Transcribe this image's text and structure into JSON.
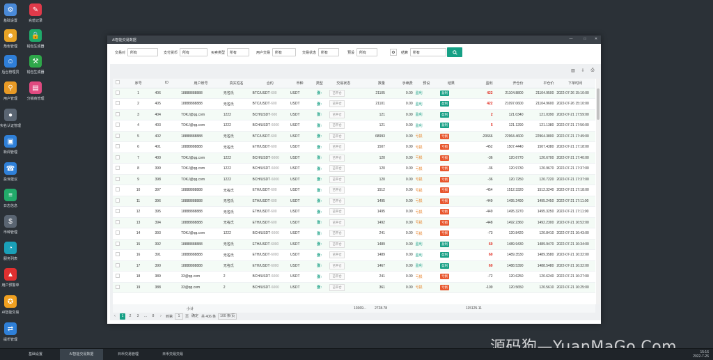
{
  "desktop_icons": [
    {
      "label": "基础设置",
      "icon": "gear-icon",
      "color": "#4a8ad8"
    },
    {
      "label": "充值记录",
      "icon": "chart-icon",
      "color": "#e03a4a"
    },
    {
      "label": "角色管理",
      "icon": "user-badge-icon",
      "color": "#e8a325"
    },
    {
      "label": "钱包生成器",
      "icon": "lock-icon",
      "color": "#1faa6a"
    },
    {
      "label": "后台管理员",
      "icon": "admin-icon",
      "color": "#2f7fd8"
    },
    {
      "label": "钱包生成器",
      "icon": "pickaxe-icon",
      "color": "#2ea84a"
    },
    {
      "label": "用户管理",
      "icon": "user-search-icon",
      "color": "#e89a25"
    },
    {
      "label": "分销商管理",
      "icon": "shop-icon",
      "color": "#e04a80"
    },
    {
      "label": "实名认证管理",
      "icon": "person-icon",
      "color": "#5a6572"
    },
    {
      "label": "新闻管理",
      "icon": "news-icon",
      "color": "#2f80d8"
    },
    {
      "label": "投诉建议",
      "icon": "headset-icon",
      "color": "#2f80d8"
    },
    {
      "label": "日志信息",
      "icon": "document-icon",
      "color": "#22aa6a"
    },
    {
      "label": "币种管理",
      "icon": "dollar-icon",
      "color": "#5a6572"
    },
    {
      "label": "服务列表",
      "icon": "pie-icon",
      "color": "#1aa0b8"
    },
    {
      "label": "用户预警单",
      "icon": "alarm-icon",
      "color": "#e03030"
    },
    {
      "label": "AI智能交易",
      "icon": "medal-icon",
      "color": "#f0a020"
    },
    {
      "label": "提币管理",
      "icon": "withdraw-icon",
      "color": "#2f80d8"
    }
  ],
  "taskbar": {
    "items": [
      "基础设置",
      "AI智能交易数据",
      "日币交易管理",
      "日币交易交易"
    ],
    "time": "15:16",
    "date": "2022-7-26"
  },
  "watermark": "源码狗—YuanMaGo.Com",
  "window": {
    "title": "AI智能交易数据",
    "ctl_min": "—",
    "ctl_max": "□",
    "ctl_close": "✕"
  },
  "filters": [
    {
      "label": "交易对",
      "value": "所有"
    },
    {
      "label": "支付货币",
      "value": "所有"
    },
    {
      "label": "买卖类型",
      "value": "所有"
    },
    {
      "label": "用户交易",
      "value": "所有"
    },
    {
      "label": "交易状态",
      "value": "所有"
    },
    {
      "label": "预设",
      "value": "所有"
    },
    {
      "label": "结算",
      "value": "所有"
    }
  ],
  "columns": [
    "",
    "序号",
    "ID",
    "用户账号",
    "真实姓名",
    "合约",
    "币种",
    "类型",
    "交易状态",
    "数量",
    "手续费",
    "预设",
    "结果",
    "盈利",
    "开仓价",
    "平仓价",
    "下单时间"
  ],
  "rows": [
    {
      "no": "1",
      "id": "406",
      "account": "18888888888",
      "name": "无名氏",
      "pair": "BTC/USDT",
      "pair_sub": "·600",
      "coin": "USDT",
      "type": "涨↑",
      "status": "已平仓",
      "qty": "21105",
      "fee": "0.00",
      "preset": "盈利",
      "result": "盈利",
      "profit": "422",
      "open": "21104.8800",
      "close": "21104.9500",
      "time": "2022-07-26 15:10:00"
    },
    {
      "no": "2",
      "id": "405",
      "account": "18888888888",
      "name": "无名氏",
      "pair": "BTC/USDT",
      "pair_sub": "·600",
      "coin": "USDT",
      "type": "涨↑",
      "status": "已平仓",
      "qty": "21101",
      "fee": "0.00",
      "preset": "盈利",
      "result": "盈利",
      "profit": "422",
      "open": "21097.0600",
      "close": "21104.9600",
      "time": "2022-07-26 15:10:00"
    },
    {
      "no": "3",
      "id": "404",
      "account": "TDKJ@qq.com",
      "name": "1222",
      "pair": "BCH/USDT",
      "pair_sub": "·600",
      "coin": "USDT",
      "type": "涨↑",
      "status": "已平仓",
      "qty": "121",
      "fee": "0.00",
      "preset": "盈利",
      "result": "盈利",
      "profit": "2",
      "open": "121.0340",
      "close": "121.0390",
      "time": "2022-07-21 17:59:00"
    },
    {
      "no": "4",
      "id": "403",
      "account": "TDKJ@qq.com",
      "name": "1222",
      "pair": "BCH/USDT",
      "pair_sub": "·6000",
      "coin": "USDT",
      "type": "涨↑",
      "status": "已平仓",
      "qty": "121",
      "fee": "0.00",
      "preset": "盈利",
      "result": "盈利",
      "profit": "5",
      "open": "121.1290",
      "close": "121.1380",
      "time": "2022-07-21 17:56:00"
    },
    {
      "no": "5",
      "id": "402",
      "account": "18888888888",
      "name": "无名氏",
      "pair": "BTC/USDT",
      "pair_sub": "·600",
      "coin": "USDT",
      "type": "涨↑",
      "status": "已平仓",
      "qty": "68993",
      "fee": "0.00",
      "preset": "亏损",
      "result": "亏损",
      "profit": "-20666",
      "open": "22964.4600",
      "close": "22964.3800",
      "time": "2022-07-21 17:49:00"
    },
    {
      "no": "6",
      "id": "401",
      "account": "18888888888",
      "name": "无名氏",
      "pair": "ETH/USDT",
      "pair_sub": "·600",
      "coin": "USDT",
      "type": "涨↑",
      "status": "已平仓",
      "qty": "1507",
      "fee": "0.00",
      "preset": "亏损",
      "result": "亏损",
      "profit": "-452",
      "open": "1507.4440",
      "close": "1507.4380",
      "time": "2022-07-21 17:18:00"
    },
    {
      "no": "7",
      "id": "400",
      "account": "TDKJ@qq.com",
      "name": "1222",
      "pair": "BCH/USDT",
      "pair_sub": "·6000",
      "coin": "USDT",
      "type": "涨↑",
      "status": "已平仓",
      "qty": "120",
      "fee": "0.00",
      "preset": "亏损",
      "result": "亏损",
      "profit": "-36",
      "open": "120.6770",
      "close": "120.6700",
      "time": "2022-07-21 17:40:00"
    },
    {
      "no": "8",
      "id": "399",
      "account": "TDKJ@qq.com",
      "name": "1222",
      "pair": "BCH/USDT",
      "pair_sub": "·6000",
      "coin": "USDT",
      "type": "涨↑",
      "status": "已平仓",
      "qty": "120",
      "fee": "0.00",
      "preset": "亏损",
      "result": "亏损",
      "profit": "-36",
      "open": "120.9730",
      "close": "120.9670",
      "time": "2022-07-21 17:37:00"
    },
    {
      "no": "9",
      "id": "398",
      "account": "TDKJ@qq.com",
      "name": "1222",
      "pair": "BCH/USDT",
      "pair_sub": "·6000",
      "coin": "USDT",
      "type": "涨↑",
      "status": "已平仓",
      "qty": "120",
      "fee": "0.00",
      "preset": "亏损",
      "result": "亏损",
      "profit": "-36",
      "open": "120.7250",
      "close": "120.7220",
      "time": "2022-07-21 17:37:00"
    },
    {
      "no": "10",
      "id": "397",
      "account": "18888888888",
      "name": "无名氏",
      "pair": "ETH/USDT",
      "pair_sub": "·600",
      "coin": "USDT",
      "type": "涨↑",
      "status": "已平仓",
      "qty": "1512",
      "fee": "0.00",
      "preset": "亏损",
      "result": "亏损",
      "profit": "-454",
      "open": "1512.3320",
      "close": "1512.3240",
      "time": "2022-07-21 17:18:00"
    },
    {
      "no": "11",
      "id": "396",
      "account": "18888888888",
      "name": "无名氏",
      "pair": "ETH/USDT",
      "pair_sub": "·600",
      "coin": "USDT",
      "type": "涨↑",
      "status": "已平仓",
      "qty": "1495",
      "fee": "0.00",
      "preset": "亏损",
      "result": "亏损",
      "profit": "-449",
      "open": "1495.2490",
      "close": "1495.2450",
      "time": "2022-07-21 17:11:00"
    },
    {
      "no": "12",
      "id": "395",
      "account": "18888888888",
      "name": "无名氏",
      "pair": "ETH/USDT",
      "pair_sub": "·600",
      "coin": "USDT",
      "type": "涨↑",
      "status": "已平仓",
      "qty": "1495",
      "fee": "0.00",
      "preset": "亏损",
      "result": "亏损",
      "profit": "-449",
      "open": "1495.3270",
      "close": "1495.3250",
      "time": "2022-07-21 17:11:00"
    },
    {
      "no": "13",
      "id": "394",
      "account": "18888888888",
      "name": "无名氏",
      "pair": "ETH/USDT",
      "pair_sub": "·600",
      "coin": "USDT",
      "type": "涨↑",
      "status": "已平仓",
      "qty": "1492",
      "fee": "0.00",
      "preset": "亏损",
      "result": "亏损",
      "profit": "-448",
      "open": "1492.2360",
      "close": "1492.2300",
      "time": "2022-07-21 16:52:00"
    },
    {
      "no": "14",
      "id": "393",
      "account": "TDKJ@qq.com",
      "name": "1222",
      "pair": "BCH/USDT",
      "pair_sub": "·6000",
      "coin": "USDT",
      "type": "涨↑",
      "status": "已平仓",
      "qty": "241",
      "fee": "0.00",
      "preset": "亏损",
      "result": "亏损",
      "profit": "-73",
      "open": "120.8420",
      "close": "120.8410",
      "time": "2022-07-21 16:43:00"
    },
    {
      "no": "15",
      "id": "392",
      "account": "18888888888",
      "name": "无名氏",
      "pair": "ETH/USDT",
      "pair_sub": "·6000",
      "coin": "USDT",
      "type": "涨↑",
      "status": "已平仓",
      "qty": "1489",
      "fee": "0.00",
      "preset": "盈利",
      "result": "盈利",
      "profit": "60",
      "open": "1489.9430",
      "close": "1489.9470",
      "time": "2022-07-21 16:34:00"
    },
    {
      "no": "16",
      "id": "391",
      "account": "18888888888",
      "name": "无名氏",
      "pair": "ETH/USDT",
      "pair_sub": "·6000",
      "coin": "USDT",
      "type": "涨↑",
      "status": "已平仓",
      "qty": "1489",
      "fee": "0.00",
      "preset": "盈利",
      "result": "盈利",
      "profit": "60",
      "open": "1489.3530",
      "close": "1489.3580",
      "time": "2022-07-21 16:32:00"
    },
    {
      "no": "17",
      "id": "390",
      "account": "18888888888",
      "name": "无名氏",
      "pair": "ETH/USDT",
      "pair_sub": "·6000",
      "coin": "USDT",
      "type": "涨↑",
      "status": "已平仓",
      "qty": "1467",
      "fee": "0.00",
      "preset": "盈利",
      "result": "盈利",
      "profit": "60",
      "open": "1488.5390",
      "close": "1488.5480",
      "time": "2022-07-21 16:32:00"
    },
    {
      "no": "18",
      "id": "389",
      "account": "33@qq.com",
      "name": "2",
      "pair": "BCH/USDT",
      "pair_sub": "·6000",
      "coin": "USDT",
      "type": "涨↑",
      "status": "已平仓",
      "qty": "241",
      "fee": "0.00",
      "preset": "亏损",
      "result": "亏损",
      "profit": "-72",
      "open": "120.6250",
      "close": "120.6240",
      "time": "2022-07-21 16:27:00"
    },
    {
      "no": "19",
      "id": "388",
      "account": "33@qq.com",
      "name": "2",
      "pair": "BCH/USDT",
      "pair_sub": "·6000",
      "coin": "USDT",
      "type": "涨↑",
      "status": "已平仓",
      "qty": "361",
      "fee": "0.00",
      "preset": "亏损",
      "result": "亏损",
      "profit": "-109",
      "open": "120.5650",
      "close": "120.5610",
      "time": "2022-07-21 16:25:00"
    }
  ],
  "totals": {
    "label": "小计",
    "qty": "10369...",
    "fee": "2728.78",
    "profit": "115125.11"
  },
  "pager": {
    "prev": "‹",
    "pages": [
      "1",
      "2",
      "3",
      "...",
      "8"
    ],
    "next": "›",
    "goto_label": "到第",
    "goto_value": "1",
    "page_unit": "页",
    "confirm": "确定",
    "total": "共 406 条",
    "per_page": "100 条/页"
  },
  "colors": {
    "accent": "#16a085",
    "loss": "#e8572e",
    "profit": "#e0261b"
  }
}
